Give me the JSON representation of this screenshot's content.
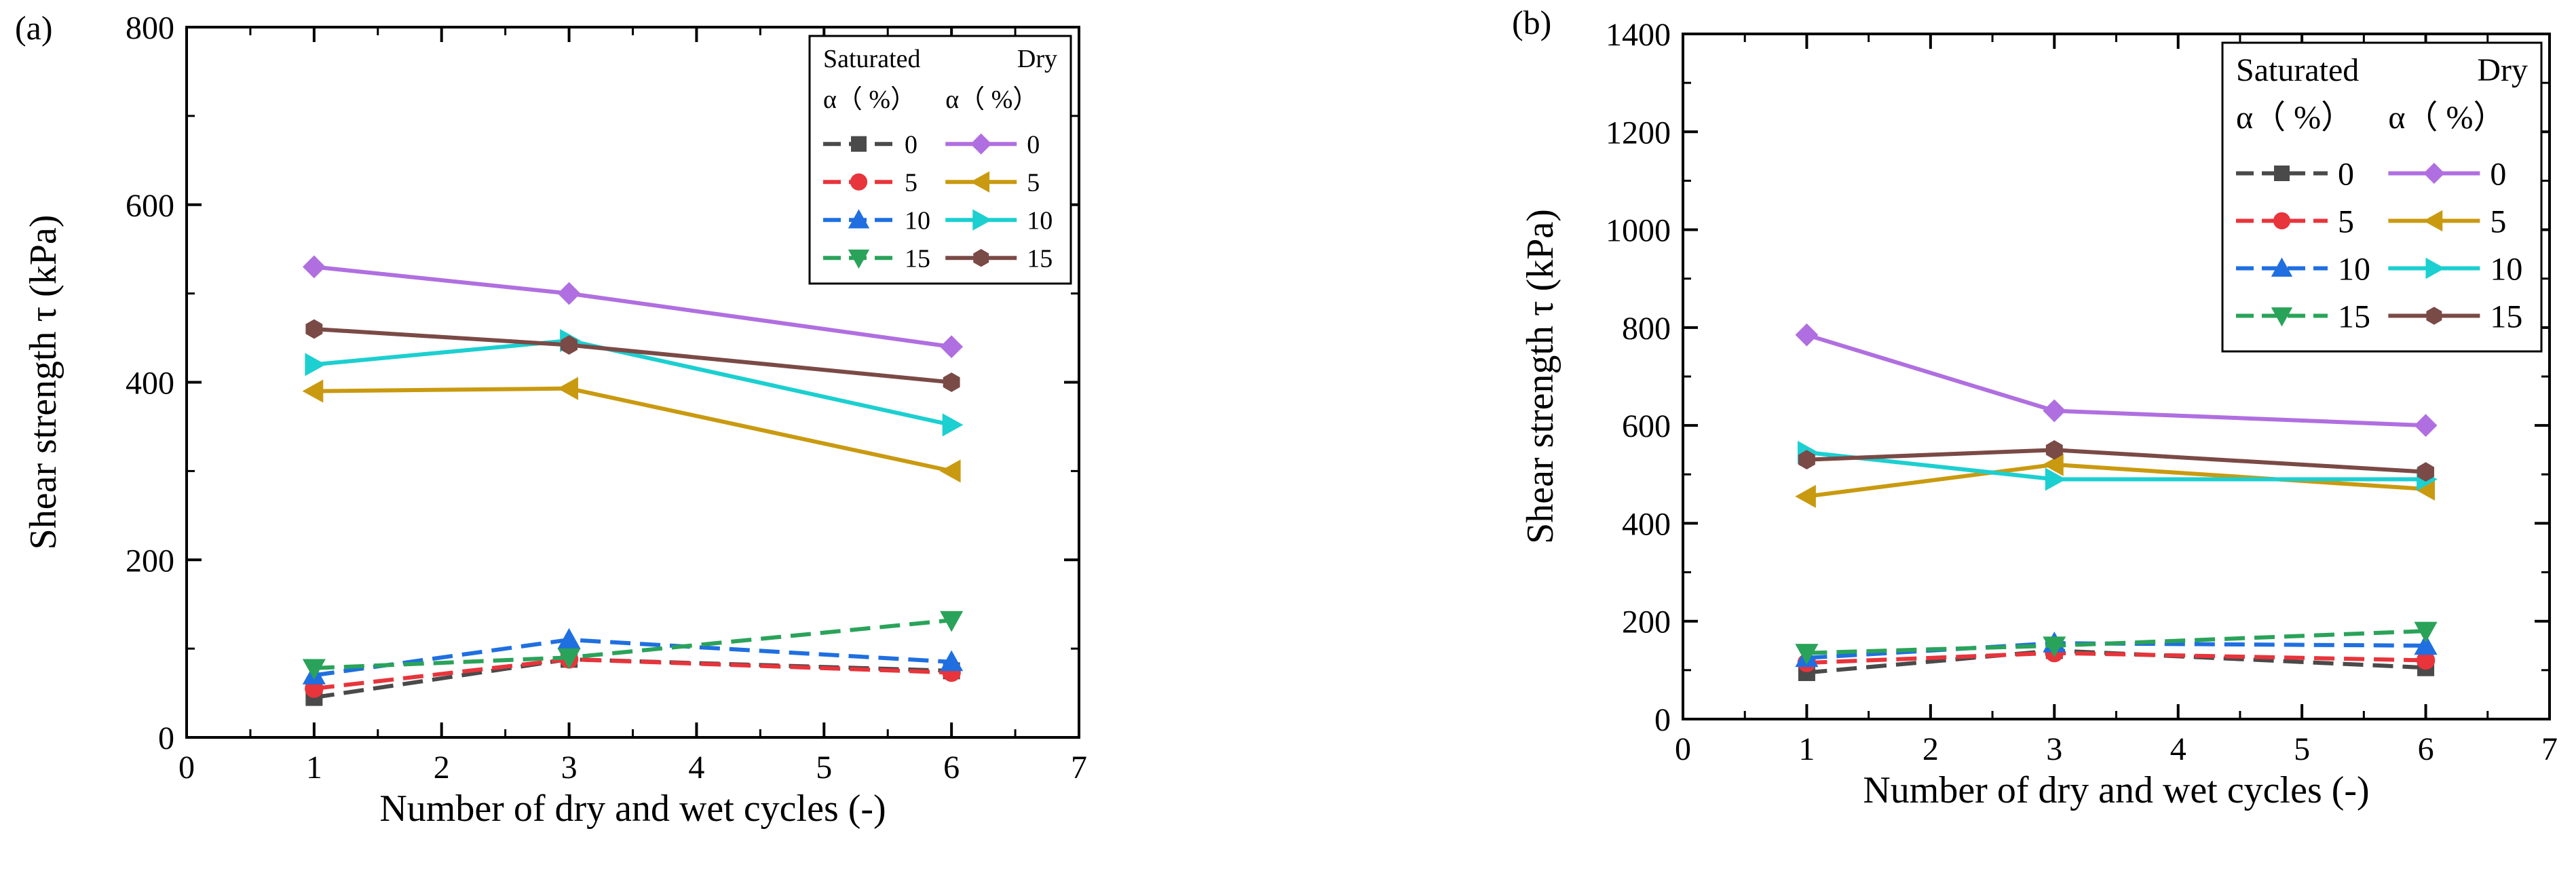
{
  "colors": {
    "sat_0": "#4a4a4a",
    "sat_5": "#e8343b",
    "sat_10": "#1f6fe0",
    "sat_15": "#2aa35a",
    "dry_0": "#b06fe0",
    "dry_5": "#c99a10",
    "dry_10": "#1ccfd0",
    "dry_15": "#7a4a46"
  },
  "legend_headers": {
    "saturated": "Saturated",
    "dry": "Dry",
    "alpha_sat": "α（ %）",
    "alpha_dry": "α（ %）"
  },
  "chart_data": [
    {
      "type": "line",
      "panel_label": "(a)",
      "xlabel": "Number of dry and wet cycles (-)",
      "ylabel": "Shear strength τ (kPa)",
      "xlim": [
        0,
        7
      ],
      "ylim": [
        0,
        800
      ],
      "xticks": [
        "0",
        "1",
        "2",
        "3",
        "4",
        "5",
        "6",
        "7"
      ],
      "yticks": [
        "0",
        "200",
        "400",
        "600",
        "800"
      ],
      "x": [
        1,
        3,
        6
      ],
      "legend_position": "top-right",
      "series": [
        {
          "name": "Saturated 0",
          "label": "0",
          "group": "saturated",
          "marker": "square",
          "color_key": "sat_0",
          "values": [
            45,
            88,
            75
          ]
        },
        {
          "name": "Saturated 5",
          "label": "5",
          "group": "saturated",
          "marker": "circle",
          "color_key": "sat_5",
          "values": [
            55,
            88,
            73
          ]
        },
        {
          "name": "Saturated 10",
          "label": "10",
          "group": "saturated",
          "marker": "triangle-up",
          "color_key": "sat_10",
          "values": [
            70,
            110,
            85
          ]
        },
        {
          "name": "Saturated 15",
          "label": "15",
          "group": "saturated",
          "marker": "triangle-down",
          "color_key": "sat_15",
          "values": [
            78,
            90,
            132
          ]
        },
        {
          "name": "Dry 0",
          "label": "0",
          "group": "dry",
          "marker": "diamond",
          "color_key": "dry_0",
          "values": [
            530,
            500,
            440
          ]
        },
        {
          "name": "Dry 5",
          "label": "5",
          "group": "dry",
          "marker": "triangle-left",
          "color_key": "dry_5",
          "values": [
            390,
            393,
            300
          ]
        },
        {
          "name": "Dry 10",
          "label": "10",
          "group": "dry",
          "marker": "triangle-right",
          "color_key": "dry_10",
          "values": [
            420,
            447,
            352
          ]
        },
        {
          "name": "Dry 15",
          "label": "15",
          "group": "dry",
          "marker": "hexagon",
          "color_key": "dry_15",
          "values": [
            460,
            442,
            400
          ]
        }
      ]
    },
    {
      "type": "line",
      "panel_label": "(b)",
      "xlabel": "Number of dry and wet cycles (-)",
      "ylabel": "Shear strength τ (kPa)",
      "xlim": [
        0,
        7
      ],
      "ylim": [
        0,
        1400
      ],
      "xticks": [
        "0",
        "1",
        "2",
        "3",
        "4",
        "5",
        "6",
        "7"
      ],
      "yticks": [
        "0",
        "200",
        "400",
        "600",
        "800",
        "1000",
        "1200",
        "1400"
      ],
      "x": [
        1,
        3,
        6
      ],
      "legend_position": "top-right",
      "series": [
        {
          "name": "Saturated 0",
          "label": "0",
          "group": "saturated",
          "marker": "square",
          "color_key": "sat_0",
          "values": [
            95,
            140,
            105
          ]
        },
        {
          "name": "Saturated 5",
          "label": "5",
          "group": "saturated",
          "marker": "circle",
          "color_key": "sat_5",
          "values": [
            115,
            135,
            120
          ]
        },
        {
          "name": "Saturated 10",
          "label": "10",
          "group": "saturated",
          "marker": "triangle-up",
          "color_key": "sat_10",
          "values": [
            125,
            155,
            150
          ]
        },
        {
          "name": "Saturated 15",
          "label": "15",
          "group": "saturated",
          "marker": "triangle-down",
          "color_key": "sat_15",
          "values": [
            135,
            150,
            180
          ]
        },
        {
          "name": "Dry 0",
          "label": "0",
          "group": "dry",
          "marker": "diamond",
          "color_key": "dry_0",
          "values": [
            785,
            630,
            600
          ]
        },
        {
          "name": "Dry 5",
          "label": "5",
          "group": "dry",
          "marker": "triangle-left",
          "color_key": "dry_5",
          "values": [
            455,
            520,
            470
          ]
        },
        {
          "name": "Dry 10",
          "label": "10",
          "group": "dry",
          "marker": "triangle-right",
          "color_key": "dry_10",
          "values": [
            545,
            490,
            490
          ]
        },
        {
          "name": "Dry 15",
          "label": "15",
          "group": "dry",
          "marker": "hexagon",
          "color_key": "dry_15",
          "values": [
            530,
            550,
            505
          ]
        }
      ]
    }
  ]
}
